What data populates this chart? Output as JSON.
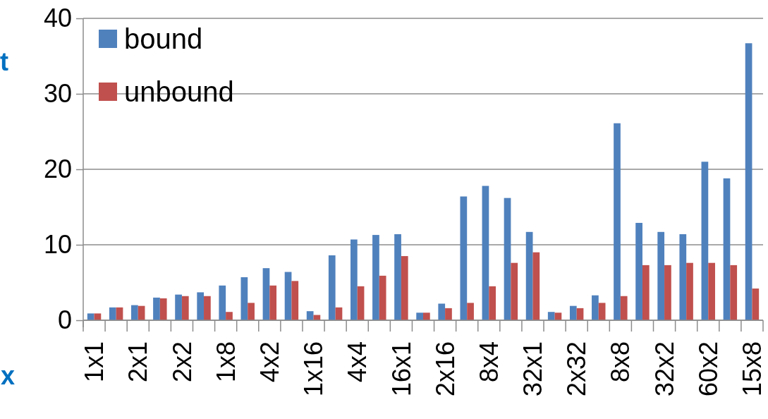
{
  "chart_data": {
    "type": "bar",
    "ylabel": "t",
    "xlabel": "x",
    "categories": [
      "1x1",
      null,
      "2x1",
      null,
      "2x2",
      null,
      "1x8",
      null,
      "4x2",
      null,
      "1x16",
      null,
      "4x4",
      null,
      "16x1",
      null,
      "2x16",
      null,
      "8x4",
      null,
      "32x1",
      null,
      "2x32",
      null,
      "8x8",
      null,
      "32x2",
      null,
      "60x2",
      null,
      "15x8"
    ],
    "series": [
      {
        "name": "bound",
        "color": "#4f81bd",
        "values": [
          0.9,
          1.7,
          2.0,
          3.0,
          3.4,
          3.7,
          4.6,
          5.7,
          6.9,
          6.4,
          1.2,
          8.6,
          10.7,
          11.3,
          11.4,
          1.0,
          2.2,
          16.4,
          17.8,
          16.2,
          11.7,
          1.1,
          1.9,
          3.3,
          26.1,
          12.9,
          11.7,
          11.4,
          21.0,
          18.8,
          36.7
        ]
      },
      {
        "name": "unbound",
        "color": "#c0504d",
        "values": [
          0.9,
          1.7,
          1.9,
          2.9,
          3.2,
          3.2,
          1.1,
          2.3,
          4.6,
          5.2,
          0.7,
          1.7,
          4.5,
          5.9,
          8.5,
          1.0,
          1.6,
          2.3,
          4.5,
          7.6,
          9.0,
          1.0,
          1.6,
          2.3,
          3.2,
          7.3,
          7.3,
          7.6,
          7.6,
          7.3,
          4.2
        ]
      }
    ],
    "ylim": [
      0,
      40
    ],
    "yticks": [
      0,
      10,
      20,
      30,
      40
    ],
    "grid": "y",
    "legend": "top left"
  }
}
